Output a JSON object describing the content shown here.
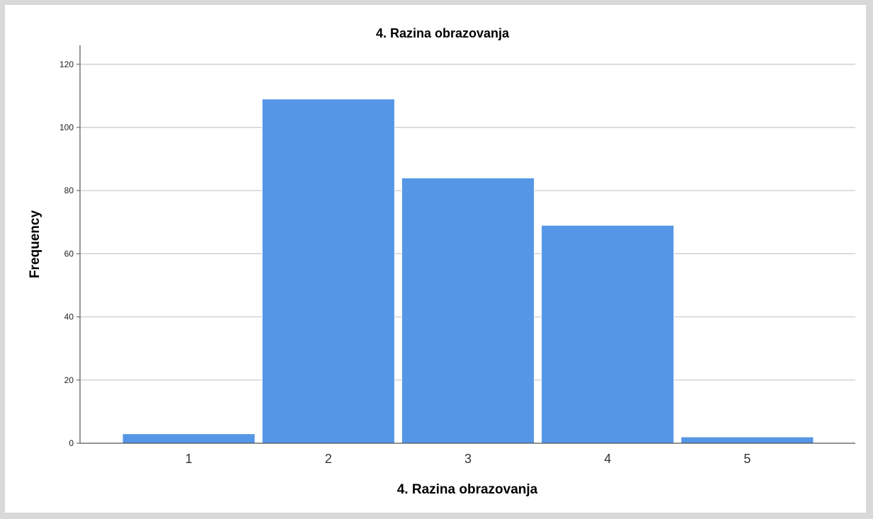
{
  "chart_data": {
    "type": "bar",
    "title": "4. Razina obrazovanja",
    "xlabel": "4. Razina obrazovanja",
    "ylabel": "Frequency",
    "categories": [
      "1",
      "2",
      "3",
      "4",
      "5"
    ],
    "values": [
      3,
      109,
      84,
      69,
      2
    ],
    "ylim": [
      0,
      126
    ],
    "yticks": [
      0,
      20,
      40,
      60,
      80,
      100,
      120
    ],
    "grid": true,
    "legend": "none",
    "colors": {
      "bar": "#5596e6",
      "bar_border": "#ffffff",
      "grid": "#c8c8c8",
      "axis": "#555555",
      "frame": "#d9d9d9"
    }
  }
}
